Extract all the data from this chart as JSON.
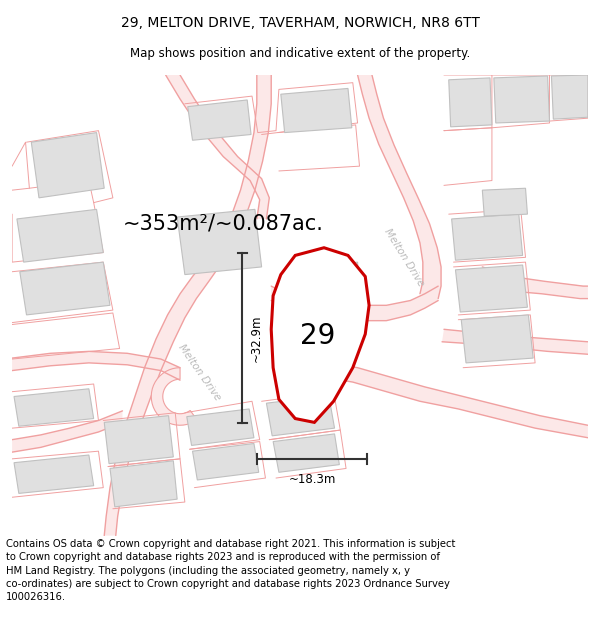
{
  "title_line1": "29, MELTON DRIVE, TAVERHAM, NORWICH, NR8 6TT",
  "title_line2": "Map shows position and indicative extent of the property.",
  "footer_text": "Contains OS data © Crown copyright and database right 2021. This information is subject\nto Crown copyright and database rights 2023 and is reproduced with the permission of\nHM Land Registry. The polygons (including the associated geometry, namely x, y\nco-ordinates) are subject to Crown copyright and database rights 2023 Ordnance Survey\n100026316.",
  "area_label": "~353m²/~0.087ac.",
  "number_label": "29",
  "dim_width": "~18.3m",
  "dim_height": "~32.9m",
  "road_label_left": "Melton Drive",
  "road_label_right": "Melton Drive",
  "map_bg": "#f5f5f5",
  "property_outline": "#cc0000",
  "road_line_color": "#f0a0a0",
  "road_fill_color": "#fce8e8",
  "building_fill": "#e0e0e0",
  "building_edge": "#c0c0c0",
  "dim_line_color": "#333333",
  "road_label_color": "#bbbbbb",
  "title_fontsize": 10,
  "subtitle_fontsize": 8.5,
  "footer_fontsize": 7.2,
  "area_fontsize": 15,
  "number_fontsize": 20
}
